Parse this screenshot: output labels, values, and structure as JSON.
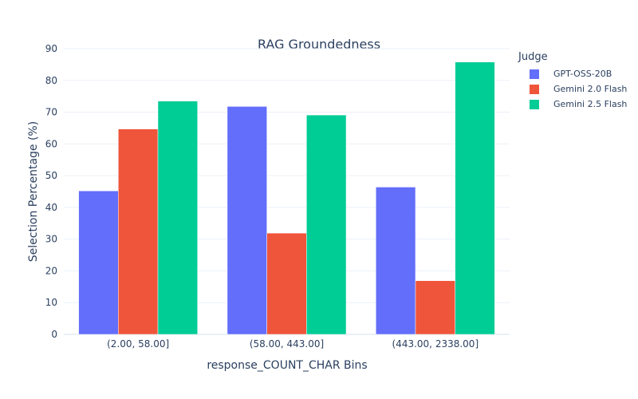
{
  "chart_data": {
    "type": "bar",
    "title": "RAG Groundedness",
    "xlabel": "response_COUNT_CHAR Bins",
    "ylabel": "Selection Percentage (%)",
    "categories": [
      "(2.00, 58.00]",
      "(58.00, 443.00]",
      "(443.00, 2338.00]"
    ],
    "series": [
      {
        "name": "GPT-OSS-20B",
        "color": "#636efa",
        "values": [
          45.2,
          71.8,
          46.4
        ]
      },
      {
        "name": "Gemini 2.0 Flash",
        "color": "#ef553b",
        "values": [
          64.7,
          31.9,
          16.9
        ]
      },
      {
        "name": "Gemini 2.5 Flash",
        "color": "#00cc96",
        "values": [
          73.5,
          69.1,
          85.8
        ]
      }
    ],
    "ylim": [
      0,
      90
    ],
    "yticks": [
      0,
      10,
      20,
      30,
      40,
      50,
      60,
      70,
      80,
      90
    ],
    "grid": true,
    "legend": {
      "title": "Judge",
      "position": "right"
    }
  }
}
